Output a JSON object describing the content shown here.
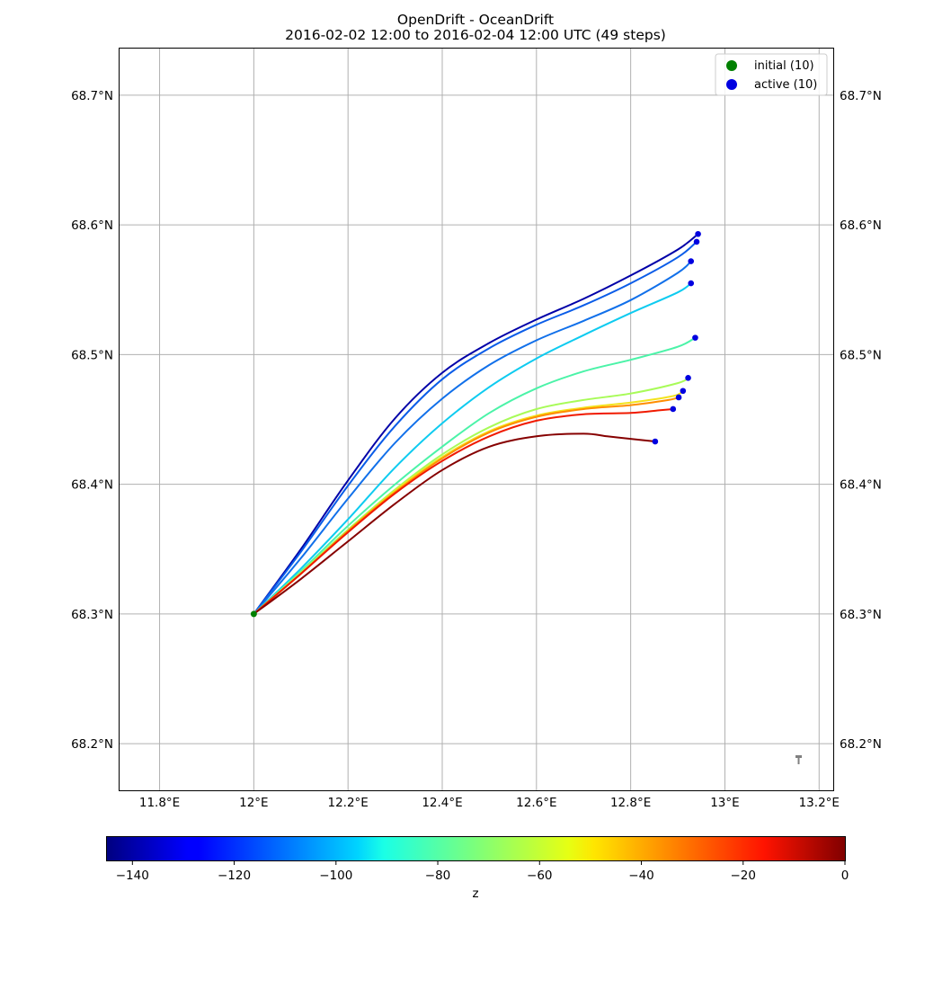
{
  "chart_data": {
    "type": "line",
    "title": "OpenDrift - OceanDrift",
    "subtitle": "2016-02-02 12:00 to 2016-02-04 12:00 UTC (49 steps)",
    "x_axis": {
      "ticks": [
        11.8,
        12.0,
        12.2,
        12.4,
        12.6,
        12.8,
        13.0,
        13.2
      ],
      "tick_labels": [
        "11.8°E",
        "12°E",
        "12.2°E",
        "12.4°E",
        "12.6°E",
        "12.8°E",
        "13°E",
        "13.2°E"
      ],
      "range": [
        11.715,
        13.23
      ]
    },
    "y_axis": {
      "ticks": [
        68.7,
        68.6,
        68.5,
        68.4,
        68.3,
        68.2
      ],
      "tick_labels": [
        "68.7°N",
        "68.6°N",
        "68.5°N",
        "68.4°N",
        "68.3°N",
        "68.2°N"
      ],
      "range": [
        68.164,
        68.736
      ]
    },
    "grid": true,
    "legend": {
      "placement": "top-right",
      "entries": [
        {
          "label": "initial (10)",
          "color": "#008000"
        },
        {
          "label": "active (10)",
          "color": "#0000e0"
        }
      ]
    },
    "colorbar": {
      "label": "z",
      "range": [
        -145,
        0
      ],
      "ticks": [
        -140,
        -120,
        -100,
        -80,
        -60,
        -40,
        -20,
        0
      ],
      "tick_labels": [
        "−140",
        "−120",
        "−100",
        "−80",
        "−60",
        "−40",
        "−20",
        "0"
      ],
      "colormap": "jet"
    },
    "initial_point": {
      "lon": 12.0,
      "lat": 68.3
    },
    "series": [
      {
        "z": -142,
        "color": "#0000a8",
        "points": [
          [
            12.0,
            68.3
          ],
          [
            12.1,
            68.35
          ],
          [
            12.2,
            68.403
          ],
          [
            12.3,
            68.451
          ],
          [
            12.4,
            68.486
          ],
          [
            12.5,
            68.509
          ],
          [
            12.6,
            68.527
          ],
          [
            12.7,
            68.543
          ],
          [
            12.8,
            68.561
          ],
          [
            12.9,
            68.581
          ],
          [
            12.943,
            68.593
          ]
        ]
      },
      {
        "z": -118,
        "color": "#0a5ce8",
        "points": [
          [
            12.0,
            68.3
          ],
          [
            12.1,
            68.348
          ],
          [
            12.2,
            68.399
          ],
          [
            12.3,
            68.445
          ],
          [
            12.4,
            68.481
          ],
          [
            12.5,
            68.505
          ],
          [
            12.6,
            68.523
          ],
          [
            12.7,
            68.538
          ],
          [
            12.8,
            68.555
          ],
          [
            12.9,
            68.575
          ],
          [
            12.94,
            68.587
          ]
        ]
      },
      {
        "z": -114,
        "color": "#1170ea",
        "points": [
          [
            12.0,
            68.3
          ],
          [
            12.1,
            68.343
          ],
          [
            12.2,
            68.389
          ],
          [
            12.3,
            68.432
          ],
          [
            12.4,
            68.466
          ],
          [
            12.5,
            68.492
          ],
          [
            12.6,
            68.511
          ],
          [
            12.7,
            68.526
          ],
          [
            12.8,
            68.542
          ],
          [
            12.9,
            68.563
          ],
          [
            12.928,
            68.572
          ]
        ]
      },
      {
        "z": -102,
        "color": "#0ecbf0",
        "points": [
          [
            12.0,
            68.3
          ],
          [
            12.1,
            68.335
          ],
          [
            12.2,
            68.373
          ],
          [
            12.3,
            68.413
          ],
          [
            12.4,
            68.447
          ],
          [
            12.5,
            68.475
          ],
          [
            12.6,
            68.497
          ],
          [
            12.7,
            68.515
          ],
          [
            12.8,
            68.532
          ],
          [
            12.9,
            68.548
          ],
          [
            12.928,
            68.555
          ]
        ]
      },
      {
        "z": -84,
        "color": "#4bf3a8",
        "points": [
          [
            12.0,
            68.3
          ],
          [
            12.1,
            68.333
          ],
          [
            12.2,
            68.368
          ],
          [
            12.3,
            68.4
          ],
          [
            12.4,
            68.429
          ],
          [
            12.5,
            68.455
          ],
          [
            12.6,
            68.474
          ],
          [
            12.7,
            68.487
          ],
          [
            12.8,
            68.496
          ],
          [
            12.9,
            68.506
          ],
          [
            12.937,
            68.513
          ]
        ]
      },
      {
        "z": -68,
        "color": "#a8fb58",
        "points": [
          [
            12.0,
            68.3
          ],
          [
            12.1,
            68.332
          ],
          [
            12.2,
            68.365
          ],
          [
            12.3,
            68.396
          ],
          [
            12.4,
            68.423
          ],
          [
            12.5,
            68.444
          ],
          [
            12.6,
            68.458
          ],
          [
            12.7,
            68.465
          ],
          [
            12.8,
            68.47
          ],
          [
            12.9,
            68.478
          ],
          [
            12.922,
            68.482
          ]
        ]
      },
      {
        "z": -52,
        "color": "#f3e31e",
        "points": [
          [
            12.0,
            68.3
          ],
          [
            12.1,
            68.331
          ],
          [
            12.2,
            68.364
          ],
          [
            12.3,
            68.395
          ],
          [
            12.4,
            68.421
          ],
          [
            12.5,
            68.441
          ],
          [
            12.6,
            68.453
          ],
          [
            12.7,
            68.459
          ],
          [
            12.8,
            68.463
          ],
          [
            12.89,
            68.468
          ],
          [
            12.911,
            68.472
          ]
        ]
      },
      {
        "z": -36,
        "color": "#ff8d00",
        "points": [
          [
            12.0,
            68.3
          ],
          [
            12.1,
            68.331
          ],
          [
            12.2,
            68.364
          ],
          [
            12.3,
            68.394
          ],
          [
            12.4,
            68.42
          ],
          [
            12.5,
            68.44
          ],
          [
            12.6,
            68.452
          ],
          [
            12.7,
            68.458
          ],
          [
            12.8,
            68.461
          ],
          [
            12.88,
            68.465
          ],
          [
            12.902,
            68.467
          ]
        ]
      },
      {
        "z": -14,
        "color": "#f01a00",
        "points": [
          [
            12.0,
            68.3
          ],
          [
            12.1,
            68.331
          ],
          [
            12.2,
            68.363
          ],
          [
            12.3,
            68.393
          ],
          [
            12.4,
            68.418
          ],
          [
            12.5,
            68.437
          ],
          [
            12.6,
            68.449
          ],
          [
            12.7,
            68.454
          ],
          [
            12.8,
            68.455
          ],
          [
            12.86,
            68.457
          ],
          [
            12.89,
            68.458
          ]
        ]
      },
      {
        "z": -2,
        "color": "#860000",
        "points": [
          [
            12.0,
            68.3
          ],
          [
            12.1,
            68.327
          ],
          [
            12.2,
            68.356
          ],
          [
            12.3,
            68.385
          ],
          [
            12.4,
            68.411
          ],
          [
            12.5,
            68.429
          ],
          [
            12.6,
            68.437
          ],
          [
            12.7,
            68.439
          ],
          [
            12.75,
            68.437
          ],
          [
            12.8,
            68.435
          ],
          [
            12.852,
            68.433
          ]
        ]
      }
    ]
  }
}
